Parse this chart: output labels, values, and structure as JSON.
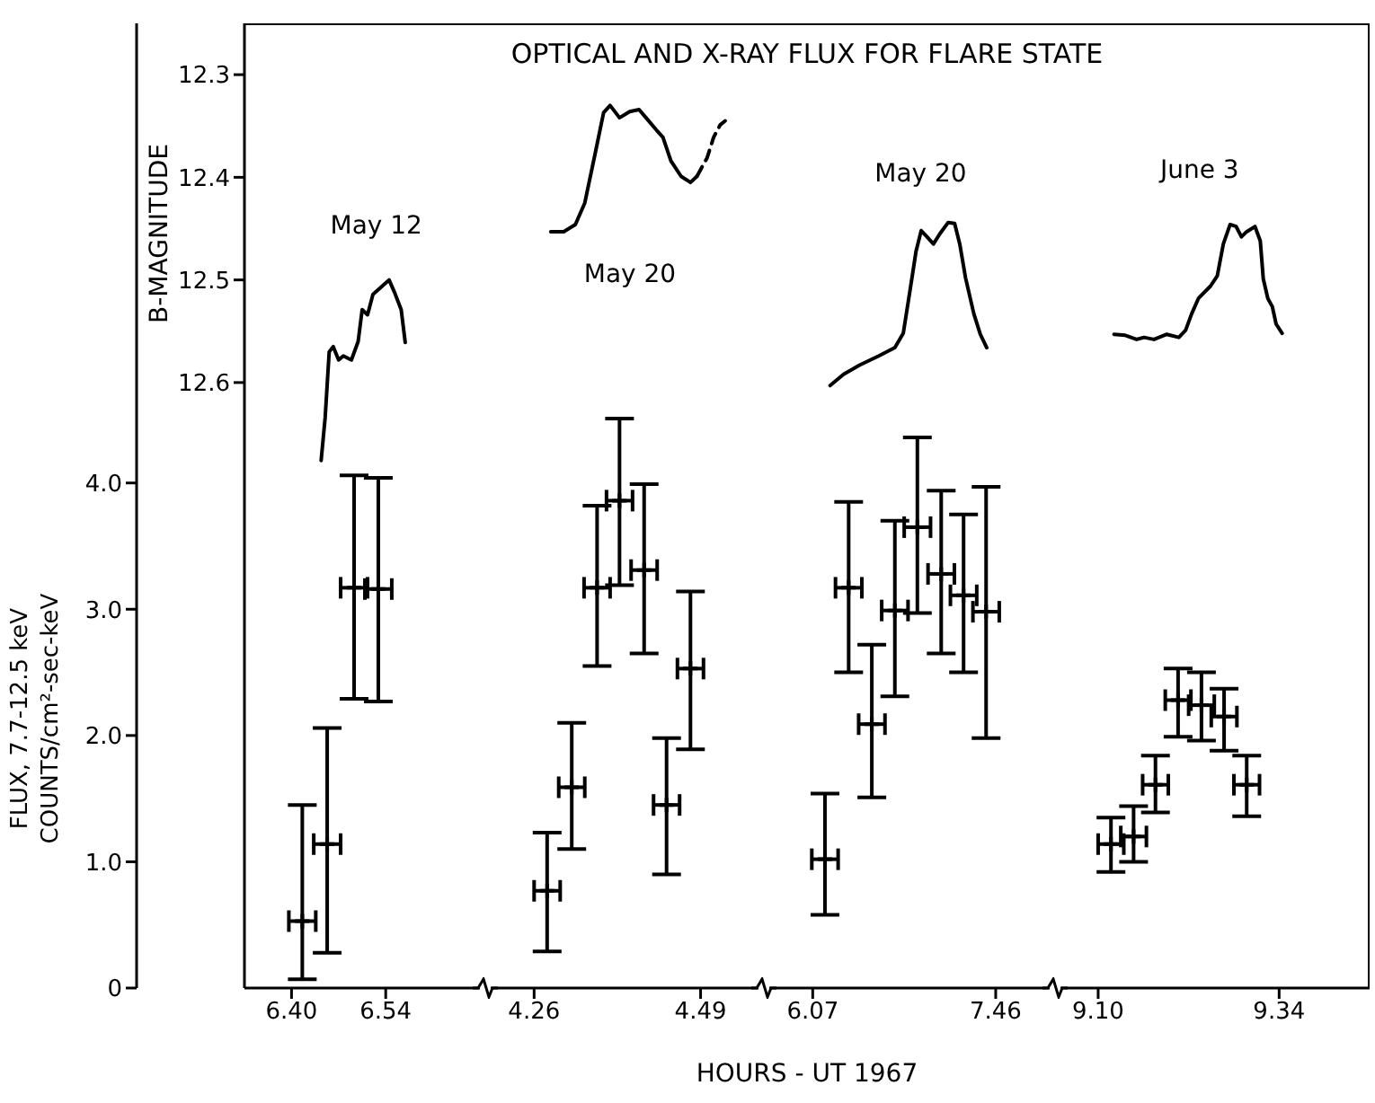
{
  "chart_data": [
    {
      "type": "other",
      "title": "OPTICAL AND X-RAY FLUX FOR FLARE STATE",
      "annotations": [
        "HOURS - UT 1967"
      ]
    },
    {
      "type": "scatter",
      "ylabel": "FLUX, 7.7-12.5 keV\nCOUNTS/cm²-sec-keV",
      "y2label": "B-MAGNITUDE",
      "xlim": [
        6.33,
        6.68
      ],
      "xticks": [
        {
          "value": 6.4,
          "label": "6.40"
        },
        6.54
      ],
      "ylim": [
        0,
        7.64
      ],
      "yticks": [
        0,
        {
          "value": 1,
          "label": "1.0"
        },
        {
          "value": 2,
          "label": "2.0"
        },
        {
          "value": 3,
          "label": "3.0"
        },
        {
          "value": 4,
          "label": "4.0"
        }
      ],
      "y2lim": [
        13.19,
        12.25
      ],
      "y2ticks": [
        12.3,
        12.4,
        12.5,
        12.6
      ],
      "annotations": [
        "May 12"
      ],
      "series": [
        {
          "type": "line",
          "axis": "y2",
          "color": "#000000",
          "line_style": "solid",
          "x": [
            6.444,
            6.45,
            6.456,
            6.462,
            6.47,
            6.477,
            6.489,
            6.499,
            6.505,
            6.513,
            6.521,
            6.533,
            6.545,
            6.553,
            6.563,
            6.569
          ],
          "values": [
            12.676,
            12.634,
            12.57,
            12.565,
            12.578,
            12.574,
            12.578,
            12.56,
            12.529,
            12.534,
            12.514,
            12.507,
            12.5,
            12.512,
            12.529,
            12.561
          ]
        },
        {
          "color": "#000000",
          "marker": "cross",
          "x": [
            6.416,
            6.453,
            6.493,
            6.529
          ],
          "values": [
            0.53,
            1.14,
            3.17,
            3.16
          ],
          "errors": [
            [
              0.07,
              1.45
            ],
            [
              0.28,
              2.06
            ],
            [
              2.29,
              4.06
            ],
            [
              2.27,
              4.04
            ]
          ],
          "xerrors": [
            0.02,
            0.02,
            0.02,
            0.02
          ]
        }
      ]
    },
    {
      "type": "scatter",
      "tick_labels": "x",
      "xlim": [
        4.2,
        4.57
      ],
      "xticks": [
        4.26,
        4.49
      ],
      "ylim": [
        0,
        7.64
      ],
      "y2lim": [
        13.19,
        12.25
      ],
      "annotations": [
        "May 20"
      ],
      "series": [
        {
          "type": "line",
          "axis": "y2",
          "color": "#000000",
          "line_style": "solid",
          "x": [
            4.283,
            4.301,
            4.317,
            4.33,
            4.344,
            4.356,
            4.365,
            4.378,
            4.392,
            4.405,
            4.417,
            4.429,
            4.438,
            4.449,
            4.463,
            4.476,
            4.485
          ],
          "values": [
            12.453,
            12.453,
            12.446,
            12.425,
            12.378,
            12.337,
            12.33,
            12.342,
            12.336,
            12.334,
            12.344,
            12.354,
            12.361,
            12.384,
            12.399,
            12.405,
            12.399
          ]
        },
        {
          "type": "line",
          "axis": "y2",
          "color": "#000000",
          "line_style": "dashed",
          "x": [
            4.485,
            4.499,
            4.508,
            4.517,
            4.524
          ],
          "values": [
            12.399,
            12.381,
            12.361,
            12.349,
            12.345
          ]
        },
        {
          "color": "#000000",
          "marker": "cross",
          "x": [
            4.278,
            4.312,
            4.347,
            4.378,
            4.412,
            4.443,
            4.476
          ],
          "values": [
            0.77,
            1.59,
            3.17,
            3.86,
            3.31,
            1.45,
            2.53
          ],
          "errors": [
            [
              0.29,
              1.23
            ],
            [
              1.1,
              2.1
            ],
            [
              2.55,
              3.82
            ],
            [
              3.19,
              4.51
            ],
            [
              2.65,
              3.99
            ],
            [
              0.9,
              1.98
            ],
            [
              1.89,
              3.14
            ]
          ],
          "xerrors": [
            0.018,
            0.018,
            0.018,
            0.018,
            0.018,
            0.018,
            0.018
          ]
        }
      ]
    },
    {
      "type": "scatter",
      "tick_labels": "x",
      "xlim": [
        5.74,
        7.87
      ],
      "xticks": [
        6.07,
        7.46
      ],
      "ylim": [
        0,
        7.64
      ],
      "y2lim": [
        13.19,
        12.25
      ],
      "annotations": [
        "May 20"
      ],
      "series": [
        {
          "type": "line",
          "axis": "y2",
          "color": "#000000",
          "line_style": "solid",
          "x": [
            6.202,
            6.304,
            6.426,
            6.572,
            6.694,
            6.758,
            6.807,
            6.855,
            6.894,
            6.938,
            6.987,
            7.036,
            7.099,
            7.148,
            7.187,
            7.231,
            7.294,
            7.343,
            7.392
          ],
          "values": [
            12.603,
            12.592,
            12.583,
            12.574,
            12.566,
            12.552,
            12.512,
            12.472,
            12.452,
            12.458,
            12.465,
            12.455,
            12.444,
            12.445,
            12.465,
            12.498,
            12.533,
            12.553,
            12.566
          ]
        },
        {
          "color": "#000000",
          "marker": "cross",
          "x": [
            6.163,
            6.343,
            6.519,
            6.694,
            6.865,
            7.046,
            7.216,
            7.387
          ],
          "values": [
            1.02,
            3.17,
            2.09,
            2.99,
            3.65,
            3.28,
            3.11,
            2.98
          ],
          "errors": [
            [
              0.58,
              1.54
            ],
            [
              2.5,
              3.85
            ],
            [
              1.51,
              2.72
            ],
            [
              2.31,
              3.7
            ],
            [
              2.97,
              4.36
            ],
            [
              2.65,
              3.94
            ],
            [
              2.5,
              3.75
            ],
            [
              1.98,
              3.97
            ]
          ],
          "xerrors": [
            0.1,
            0.1,
            0.1,
            0.1,
            0.1,
            0.1,
            0.1,
            0.1
          ]
        }
      ]
    },
    {
      "type": "scatter",
      "tick_labels": "x",
      "xlim": [
        9.05,
        9.46
      ],
      "xticks": [
        {
          "value": 9.1,
          "label": "9.10"
        },
        9.34
      ],
      "ylim": [
        0,
        7.64
      ],
      "y2lim": [
        13.19,
        12.25
      ],
      "annotations": [
        "June 3"
      ],
      "series": [
        {
          "type": "line",
          "axis": "y2",
          "color": "#000000",
          "line_style": "solid",
          "x": [
            9.121,
            9.136,
            9.151,
            9.161,
            9.174,
            9.191,
            9.207,
            9.216,
            9.224,
            9.233,
            9.249,
            9.258,
            9.266,
            9.275,
            9.283,
            9.29,
            9.297,
            9.308,
            9.315,
            9.319,
            9.325,
            9.331,
            9.336,
            9.344
          ],
          "values": [
            12.553,
            12.554,
            12.558,
            12.556,
            12.558,
            12.553,
            12.556,
            12.549,
            12.533,
            12.518,
            12.506,
            12.496,
            12.465,
            12.446,
            12.448,
            12.458,
            12.453,
            12.448,
            12.462,
            12.499,
            12.518,
            12.526,
            12.543,
            12.552
          ]
        },
        {
          "color": "#000000",
          "marker": "cross",
          "x": [
            9.117,
            9.147,
            9.176,
            9.206,
            9.237,
            9.267,
            9.297
          ],
          "values": [
            1.14,
            1.2,
            1.61,
            2.28,
            2.24,
            2.15,
            1.61
          ],
          "errors": [
            [
              0.92,
              1.35
            ],
            [
              1.0,
              1.44
            ],
            [
              1.39,
              1.84
            ],
            [
              1.99,
              2.53
            ],
            [
              1.96,
              2.5
            ],
            [
              1.88,
              2.37
            ],
            [
              1.36,
              1.84
            ]
          ],
          "xerrors": [
            0.017,
            0.017,
            0.017,
            0.017,
            0.017,
            0.017,
            0.017
          ]
        }
      ]
    }
  ]
}
